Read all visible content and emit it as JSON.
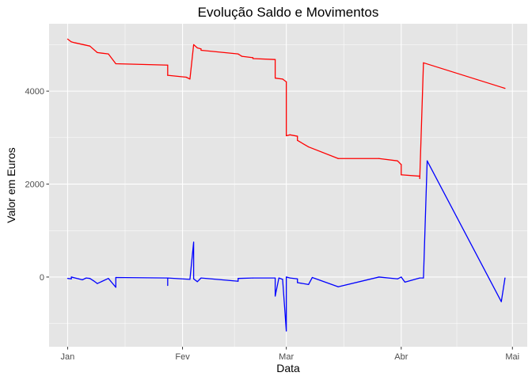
{
  "chart_data": {
    "type": "line",
    "title": "Evolução Saldo e Movimentos",
    "xlabel": "Data",
    "ylabel": "Valor em Euros",
    "x_ticks": [
      {
        "date": "2021-01-01",
        "label": "Jan"
      },
      {
        "date": "2021-02-01",
        "label": "Fev"
      },
      {
        "date": "2021-03-01",
        "label": "Mar"
      },
      {
        "date": "2021-04-01",
        "label": "Abr"
      },
      {
        "date": "2021-05-01",
        "label": "Mai"
      }
    ],
    "y_ticks": [
      {
        "value": 0,
        "label": "0"
      },
      {
        "value": 2000,
        "label": "2000"
      },
      {
        "value": 4000,
        "label": "4000"
      }
    ],
    "xlim": [
      "2020-12-27",
      "2021-05-05"
    ],
    "ylim": [
      -1500,
      5450
    ],
    "grid": true,
    "background": "#e5e5e5",
    "grid_color": "#ffffff",
    "series": [
      {
        "color": "#ff0000",
        "points": [
          [
            "2021-01-01",
            5120
          ],
          [
            "2021-01-02",
            5060
          ],
          [
            "2021-01-03",
            5040
          ],
          [
            "2021-01-07",
            4970
          ],
          [
            "2021-01-09",
            4830
          ],
          [
            "2021-01-12",
            4800
          ],
          [
            "2021-01-14",
            4590
          ],
          [
            "2021-01-28",
            4560
          ],
          [
            "2021-01-28",
            4340
          ],
          [
            "2021-02-02",
            4300
          ],
          [
            "2021-02-03",
            4260
          ],
          [
            "2021-02-04",
            5000
          ],
          [
            "2021-02-05",
            4930
          ],
          [
            "2021-02-06",
            4910
          ],
          [
            "2021-02-06",
            4880
          ],
          [
            "2021-02-16",
            4800
          ],
          [
            "2021-02-17",
            4750
          ],
          [
            "2021-02-20",
            4720
          ],
          [
            "2021-02-20",
            4700
          ],
          [
            "2021-02-26",
            4680
          ],
          [
            "2021-02-26",
            4280
          ],
          [
            "2021-02-28",
            4260
          ],
          [
            "2021-03-01",
            4200
          ],
          [
            "2021-03-01",
            3040
          ],
          [
            "2021-03-02",
            3060
          ],
          [
            "2021-03-04",
            3030
          ],
          [
            "2021-03-04",
            2940
          ],
          [
            "2021-03-07",
            2800
          ],
          [
            "2021-03-15",
            2550
          ],
          [
            "2021-03-26",
            2550
          ],
          [
            "2021-03-31",
            2500
          ],
          [
            "2021-04-01",
            2420
          ],
          [
            "2021-04-01",
            2200
          ],
          [
            "2021-04-06",
            2170
          ],
          [
            "2021-04-06",
            2120
          ],
          [
            "2021-04-07",
            4610
          ],
          [
            "2021-04-29",
            4060
          ]
        ]
      },
      {
        "color": "#0000ff",
        "points": [
          [
            "2021-01-01",
            -30
          ],
          [
            "2021-01-02",
            -40
          ],
          [
            "2021-01-02",
            0
          ],
          [
            "2021-01-04",
            -40
          ],
          [
            "2021-01-05",
            -60
          ],
          [
            "2021-01-06",
            -20
          ],
          [
            "2021-01-07",
            -30
          ],
          [
            "2021-01-08",
            -80
          ],
          [
            "2021-01-09",
            -140
          ],
          [
            "2021-01-12",
            -30
          ],
          [
            "2021-01-14",
            -220
          ],
          [
            "2021-01-14",
            -10
          ],
          [
            "2021-01-28",
            -20
          ],
          [
            "2021-01-28",
            -180
          ],
          [
            "2021-01-28",
            -20
          ],
          [
            "2021-02-03",
            -50
          ],
          [
            "2021-02-04",
            750
          ],
          [
            "2021-02-04",
            -40
          ],
          [
            "2021-02-05",
            -100
          ],
          [
            "2021-02-06",
            -20
          ],
          [
            "2021-02-16",
            -90
          ],
          [
            "2021-02-16",
            -30
          ],
          [
            "2021-02-20",
            -20
          ],
          [
            "2021-02-26",
            -20
          ],
          [
            "2021-02-26",
            -410
          ],
          [
            "2021-02-27",
            -20
          ],
          [
            "2021-02-28",
            -50
          ],
          [
            "2021-03-01",
            -1160
          ],
          [
            "2021-03-01",
            0
          ],
          [
            "2021-03-02",
            -20
          ],
          [
            "2021-03-04",
            -40
          ],
          [
            "2021-03-04",
            -120
          ],
          [
            "2021-03-07",
            -160
          ],
          [
            "2021-03-08",
            -10
          ],
          [
            "2021-03-15",
            -210
          ],
          [
            "2021-03-26",
            0
          ],
          [
            "2021-03-31",
            -40
          ],
          [
            "2021-04-01",
            0
          ],
          [
            "2021-04-02",
            -110
          ],
          [
            "2021-04-06",
            -20
          ],
          [
            "2021-04-07",
            -20
          ],
          [
            "2021-04-08",
            2500
          ],
          [
            "2021-04-28",
            -530
          ],
          [
            "2021-04-29",
            -20
          ]
        ]
      }
    ]
  }
}
